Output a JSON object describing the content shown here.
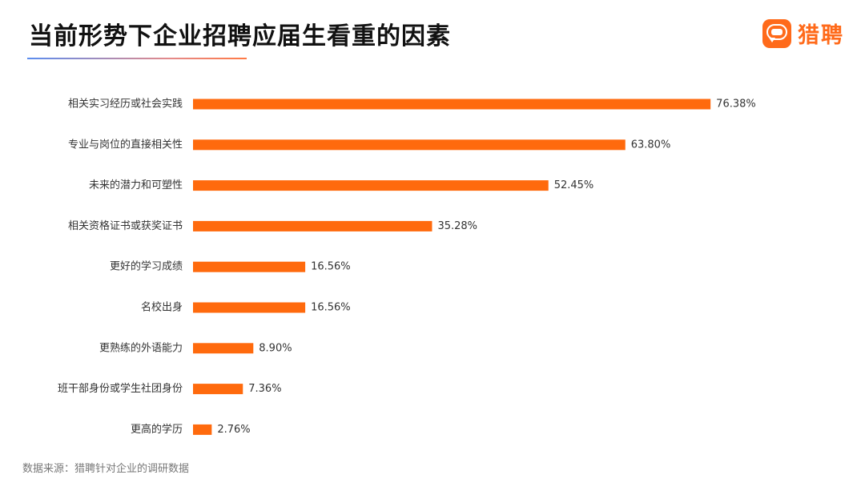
{
  "header": {
    "title": "当前形势下企业招聘应届生看重的因素"
  },
  "brand": {
    "name": "猎聘",
    "icon": "chat-bubble-logo-icon",
    "color": "#ff6a1a"
  },
  "chart_data": {
    "type": "bar",
    "orientation": "horizontal",
    "categories": [
      "相关实习经历或社会实践",
      "专业与岗位的直接相关性",
      "未来的潜力和可塑性",
      "相关资格证书或获奖证书",
      "更好的学习成绩",
      "名校出身",
      "更熟练的外语能力",
      "班干部身份或学生社团身份",
      "更高的学历"
    ],
    "values": [
      76.38,
      63.8,
      52.45,
      35.28,
      16.56,
      16.56,
      8.9,
      7.36,
      2.76
    ],
    "value_labels": [
      "76.38%",
      "63.80%",
      "52.45%",
      "35.28%",
      "16.56%",
      "16.56%",
      "8.90%",
      "7.36%",
      "2.76%"
    ],
    "unit": "%",
    "bar_color": "#ff6a0d",
    "grid": false,
    "legend": "none"
  },
  "footer": {
    "source": "数据来源：猎聘针对企业的调研数据"
  }
}
